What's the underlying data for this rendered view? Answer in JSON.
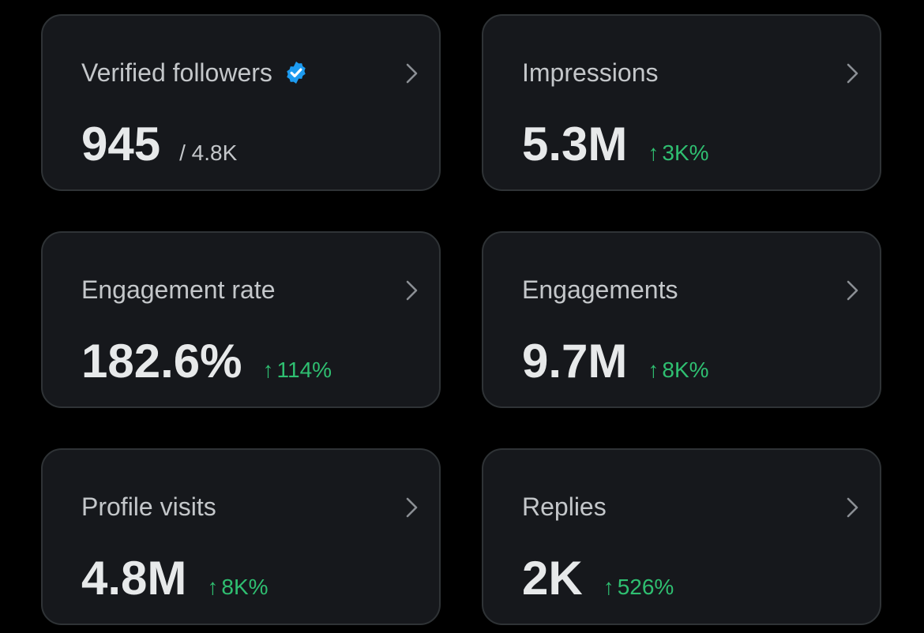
{
  "colors": {
    "background": "#000000",
    "card": "#16181c",
    "card_border": "#2f3336",
    "text_primary": "#e7e9ea",
    "text_secondary": "#c4c7ca",
    "positive": "#2fbf71",
    "verified_badge": "#1d9bf0"
  },
  "cards": [
    {
      "title": "Verified followers",
      "value": "945",
      "secondary": "/ 4.8K",
      "icon": "verified-badge-icon"
    },
    {
      "title": "Impressions",
      "value": "5.3M",
      "delta_arrow": "↑",
      "delta": "3K%"
    },
    {
      "title": "Engagement rate",
      "value": "182.6%",
      "delta_arrow": "↑",
      "delta": "114%"
    },
    {
      "title": "Engagements",
      "value": "9.7M",
      "delta_arrow": "↑",
      "delta": "8K%"
    },
    {
      "title": "Profile visits",
      "value": "4.8M",
      "delta_arrow": "↑",
      "delta": "8K%"
    },
    {
      "title": "Replies",
      "value": "2K",
      "delta_arrow": "↑",
      "delta": "526%"
    }
  ]
}
